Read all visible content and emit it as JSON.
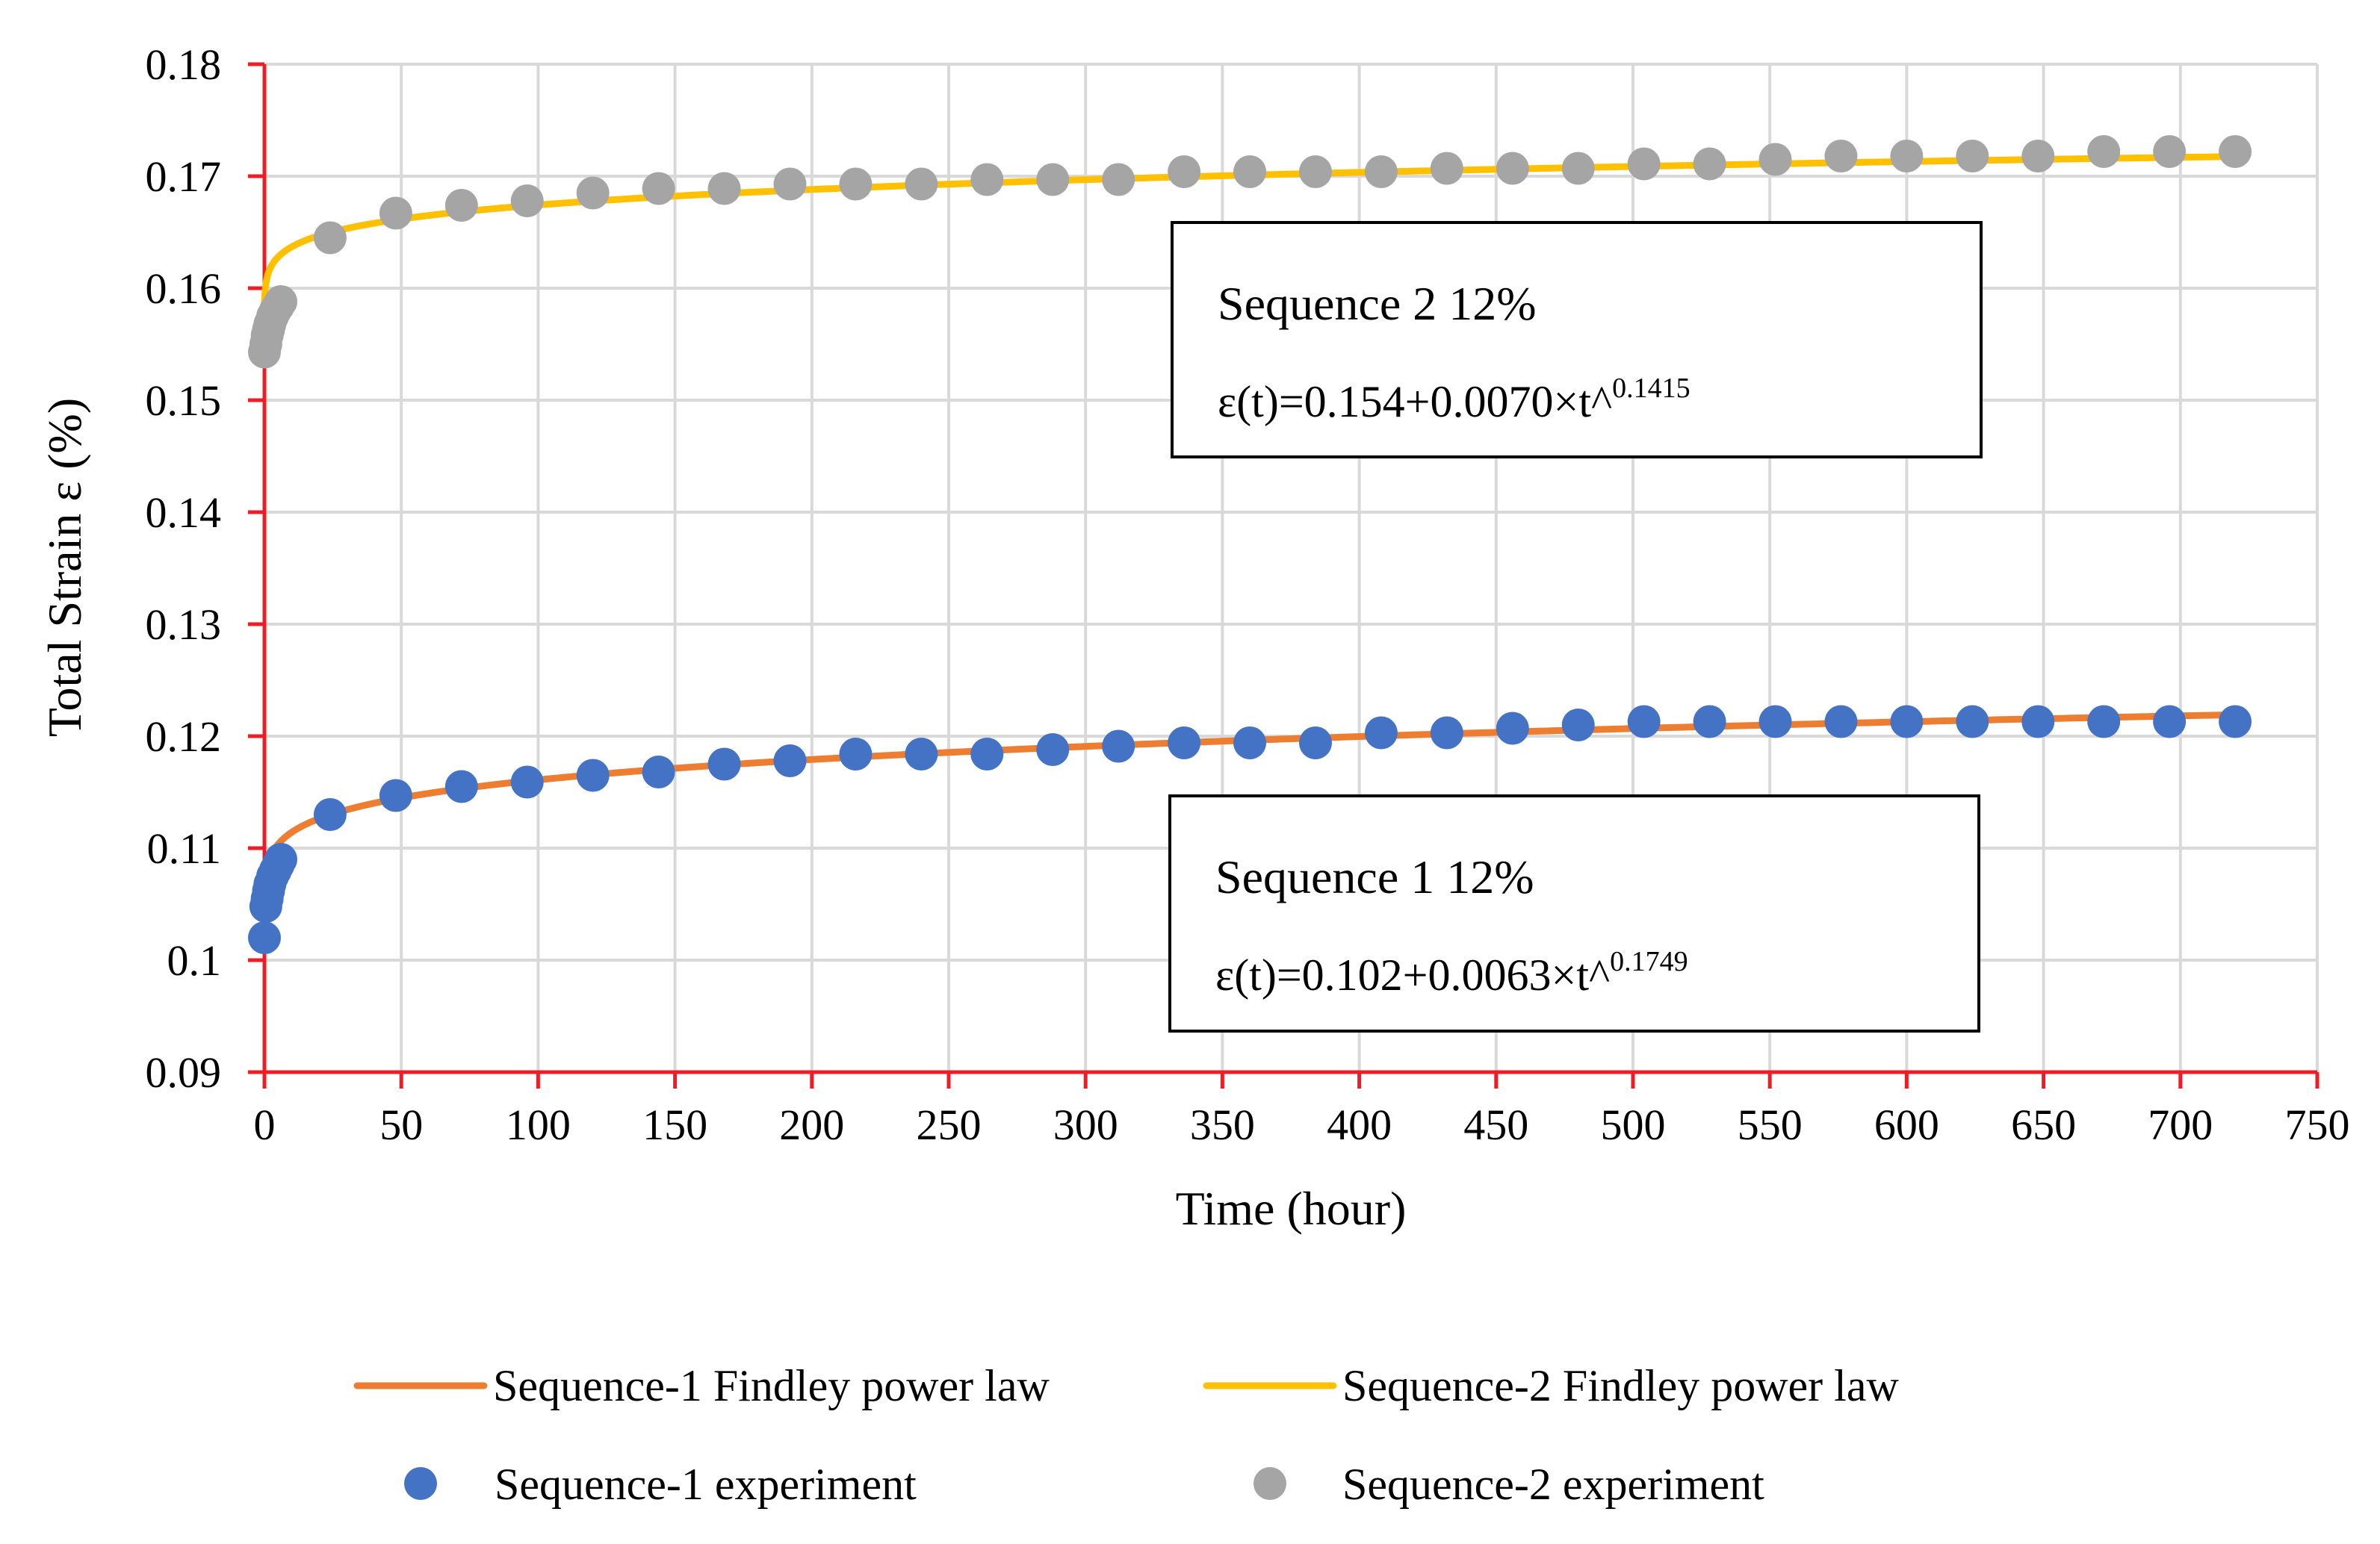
{
  "chart_data": {
    "type": "line",
    "xlabel": "Time (hour)",
    "ylabel": "Total Strain ε (%)",
    "xlim": [
      0,
      750
    ],
    "ylim": [
      0.09,
      0.18
    ],
    "xticks": [
      0,
      50,
      100,
      150,
      200,
      250,
      300,
      350,
      400,
      450,
      500,
      550,
      600,
      650,
      700,
      750
    ],
    "yticks": [
      0.09,
      0.1,
      0.11,
      0.12,
      0.13,
      0.14,
      0.15,
      0.16,
      0.17,
      0.18
    ],
    "grid": true,
    "axis_color": "#ee1c24",
    "grid_color": "#d9d9d9",
    "legend_position": "bottom",
    "series": [
      {
        "name": "Sequence-1 Findley power law",
        "kind": "line",
        "color": "#ed7d31",
        "model": {
          "e0": 0.102,
          "a": 0.0063,
          "n": 0.1749
        },
        "t_max": 720
      },
      {
        "name": "Sequence-2 Findley power law",
        "kind": "line",
        "color": "#ffc000",
        "model": {
          "e0": 0.154,
          "a": 0.007,
          "n": 0.1415
        },
        "t_max": 720
      },
      {
        "name": "Sequence-1 experiment",
        "kind": "scatter",
        "color": "#4472c4",
        "x": [
          0,
          0.5,
          1,
          1.5,
          2,
          3,
          4,
          5,
          6,
          24,
          48,
          72,
          96,
          120,
          144,
          168,
          192,
          216,
          240,
          264,
          288,
          312,
          336,
          360,
          384,
          408,
          432,
          456,
          480,
          504,
          528,
          552,
          576,
          600,
          624,
          648,
          672,
          696,
          720
        ],
        "y": [
          0.102,
          0.1048,
          0.1055,
          0.1062,
          0.1068,
          0.1075,
          0.108,
          0.1085,
          0.109,
          0.113,
          0.1147,
          0.1155,
          0.1159,
          0.1165,
          0.1168,
          0.1175,
          0.1178,
          0.1184,
          0.1184,
          0.1184,
          0.1188,
          0.1191,
          0.1194,
          0.1194,
          0.1194,
          0.1203,
          0.1203,
          0.1207,
          0.121,
          0.1213,
          0.1213,
          0.1213,
          0.1213,
          0.1213,
          0.1213,
          0.1213,
          0.1213,
          0.1213,
          0.1213
        ]
      },
      {
        "name": "Sequence-2 experiment",
        "kind": "scatter",
        "color": "#a5a5a5",
        "x": [
          0,
          0.5,
          1,
          1.5,
          2,
          3,
          4,
          5,
          6,
          24,
          48,
          72,
          96,
          120,
          144,
          168,
          192,
          216,
          240,
          264,
          288,
          312,
          336,
          360,
          384,
          408,
          432,
          456,
          480,
          504,
          528,
          552,
          576,
          600,
          624,
          648,
          672,
          696,
          720
        ],
        "y": [
          0.1543,
          0.155,
          0.1558,
          0.1563,
          0.1568,
          0.1575,
          0.158,
          0.1584,
          0.1588,
          0.1645,
          0.1667,
          0.1674,
          0.1678,
          0.1685,
          0.1689,
          0.1689,
          0.1693,
          0.1693,
          0.1693,
          0.1697,
          0.1697,
          0.1697,
          0.1704,
          0.1704,
          0.1704,
          0.1704,
          0.1707,
          0.1707,
          0.1707,
          0.1711,
          0.1711,
          0.1715,
          0.1718,
          0.1718,
          0.1718,
          0.1718,
          0.1722,
          0.1722,
          0.1722
        ]
      }
    ],
    "annotations": [
      {
        "id": "seq2",
        "title": "Sequence 2 12%",
        "formula_base": "ε(t)=0.154+0.0070×t^",
        "formula_exp": "0.1415"
      },
      {
        "id": "seq1",
        "title": "Sequence 1 12%",
        "formula_base": "ε(t)=0.102+0.0063×t^",
        "formula_exp": "0.1749"
      }
    ]
  }
}
